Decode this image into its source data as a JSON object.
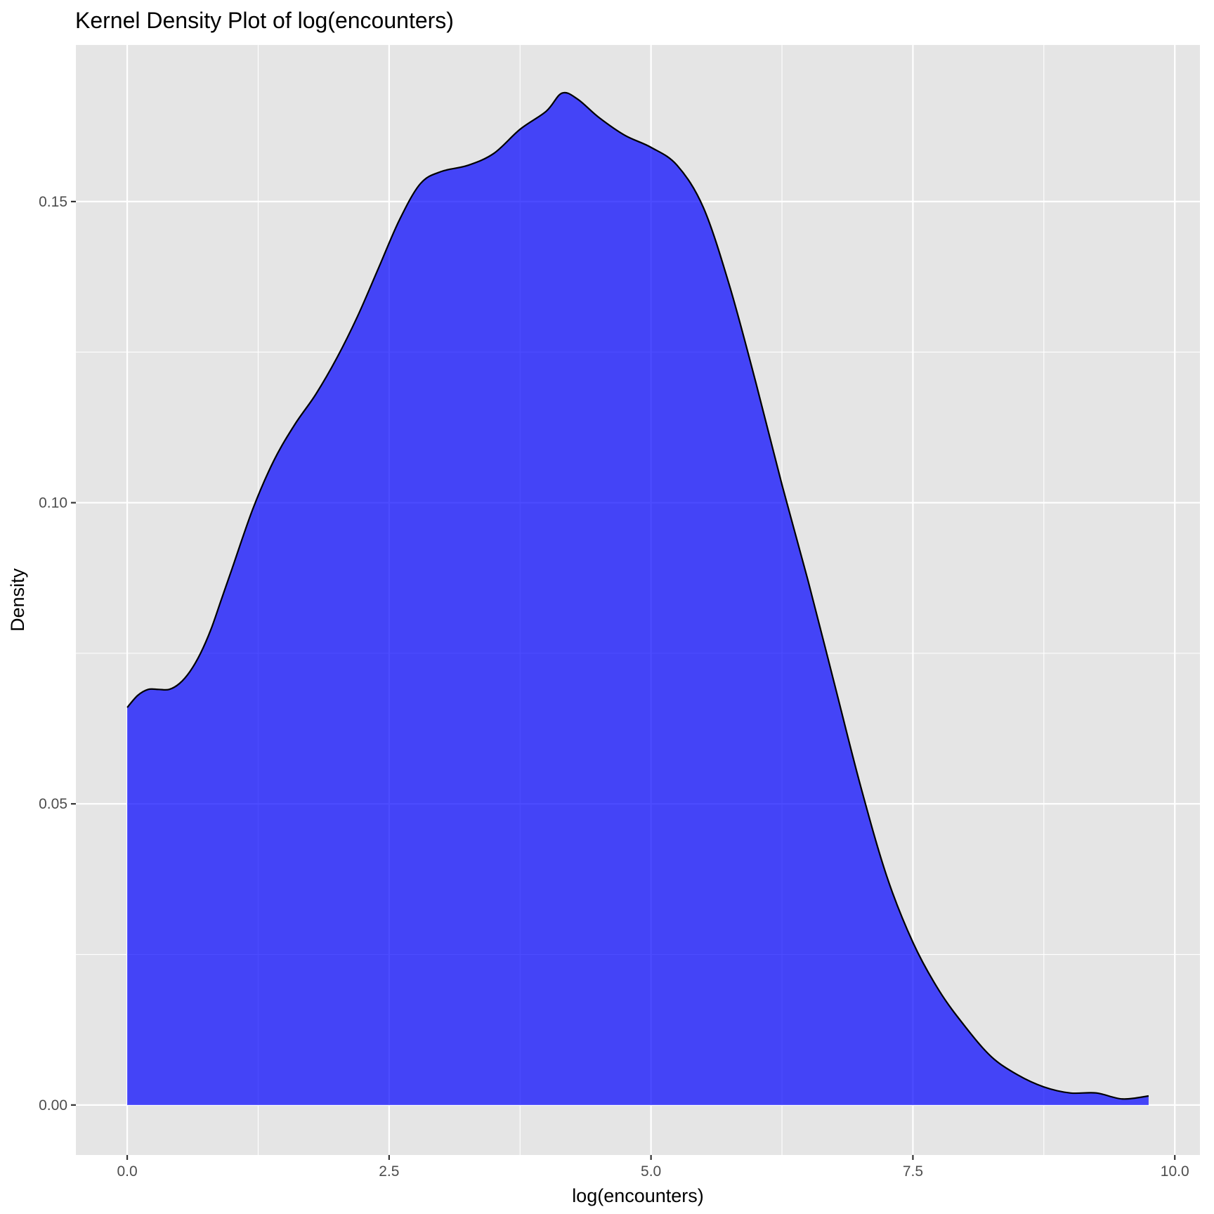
{
  "chart_data": {
    "type": "area",
    "title": "Kernel Density Plot of log(encounters)",
    "xlabel": "log(encounters)",
    "ylabel": "Density",
    "xlim": [
      -0.49,
      10.24
    ],
    "ylim": [
      -0.0083,
      0.176
    ],
    "x_ticks": [
      0.0,
      2.5,
      5.0,
      7.5,
      10.0
    ],
    "x_tick_labels": [
      "0.0",
      "2.5",
      "5.0",
      "7.5",
      "10.0"
    ],
    "y_ticks": [
      0.0,
      0.05,
      0.1,
      0.15
    ],
    "y_tick_labels": [
      "0.00",
      "0.05",
      "0.10",
      "0.15"
    ],
    "grid": true,
    "legend": "none",
    "fill_color": "#0000ff",
    "fill_opacity": 0.7,
    "line_color": "#000000",
    "panel_background": "#e5e5e5",
    "grid_color": "#ffffff",
    "series": [
      {
        "x": [
          0.0,
          0.1,
          0.2,
          0.3,
          0.4,
          0.5,
          0.6,
          0.7,
          0.8,
          0.9,
          1.0,
          1.2,
          1.4,
          1.6,
          1.8,
          2.0,
          2.2,
          2.4,
          2.6,
          2.8,
          3.0,
          3.25,
          3.5,
          3.75,
          4.0,
          4.15,
          4.3,
          4.5,
          4.75,
          5.0,
          5.25,
          5.5,
          5.75,
          6.0,
          6.25,
          6.5,
          6.75,
          7.0,
          7.25,
          7.5,
          7.75,
          8.0,
          8.25,
          8.5,
          8.75,
          9.0,
          9.25,
          9.5,
          9.75
        ],
        "y": [
          0.066,
          0.068,
          0.069,
          0.069,
          0.069,
          0.07,
          0.072,
          0.075,
          0.079,
          0.084,
          0.089,
          0.099,
          0.107,
          0.113,
          0.118,
          0.124,
          0.131,
          0.139,
          0.147,
          0.153,
          0.155,
          0.156,
          0.158,
          0.162,
          0.165,
          0.168,
          0.167,
          0.164,
          0.161,
          0.159,
          0.156,
          0.149,
          0.136,
          0.12,
          0.103,
          0.087,
          0.07,
          0.053,
          0.038,
          0.027,
          0.019,
          0.013,
          0.008,
          0.005,
          0.003,
          0.002,
          0.002,
          0.001,
          0.0015
        ]
      }
    ]
  }
}
